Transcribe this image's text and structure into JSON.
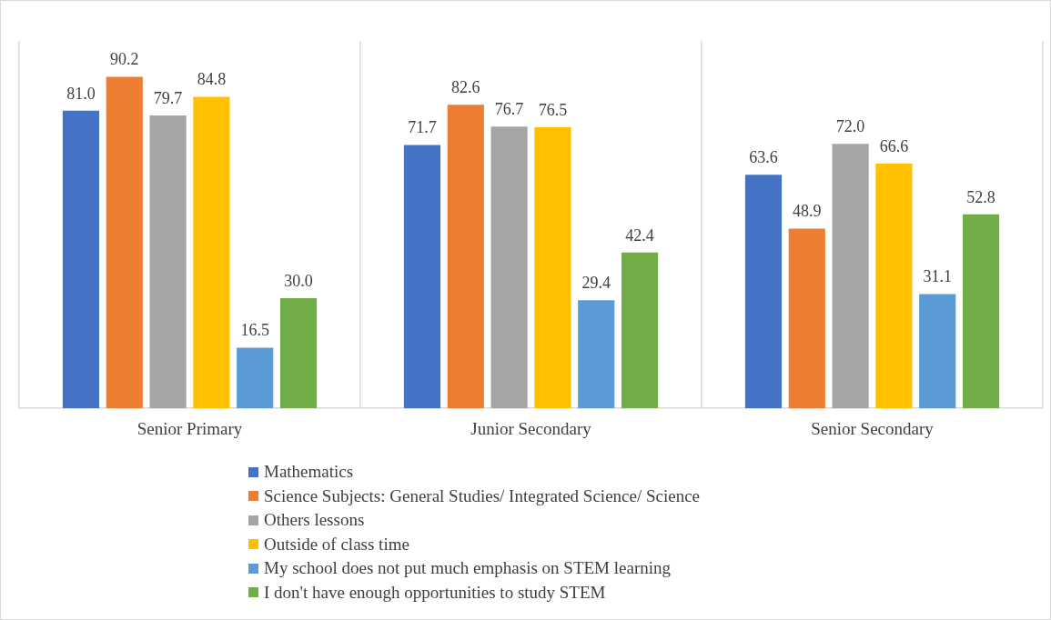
{
  "chart_data": {
    "type": "bar",
    "categories": [
      "Senior Primary",
      "Junior Secondary",
      "Senior Secondary"
    ],
    "series": [
      {
        "name": "Mathematics",
        "color": "#4472c4",
        "values": [
          81.0,
          71.7,
          63.6
        ],
        "value_labels": [
          "81.0",
          "71.7",
          "63.6"
        ]
      },
      {
        "name": "Science Subjects: General Studies/ Integrated Science/ Science",
        "color": "#ed7d31",
        "values": [
          90.2,
          82.6,
          48.9
        ],
        "value_labels": [
          "90.2",
          "82.6",
          "48.9"
        ]
      },
      {
        "name": "Others lessons",
        "color": "#a5a5a5",
        "values": [
          79.7,
          76.7,
          72.0
        ],
        "value_labels": [
          "79.7",
          "76.7",
          "72.0"
        ]
      },
      {
        "name": "Outside of class time",
        "color": "#ffc000",
        "values": [
          84.8,
          76.5,
          66.6
        ],
        "value_labels": [
          "84.8",
          "76.5",
          "66.6"
        ]
      },
      {
        "name": "My school does not put much emphasis on STEM learning",
        "color": "#5b9bd5",
        "values": [
          16.5,
          29.4,
          31.1
        ],
        "value_labels": [
          "16.5",
          "29.4",
          "31.1"
        ]
      },
      {
        "name": "I don't have enough opportunities to study STEM",
        "color": "#70ad47",
        "values": [
          30.0,
          42.4,
          52.8
        ],
        "value_labels": [
          "30.0",
          "42.4",
          "52.8"
        ]
      }
    ],
    "ylim": [
      0,
      100
    ],
    "grid": "x",
    "legend": "bottom",
    "tick_labels": "x"
  }
}
